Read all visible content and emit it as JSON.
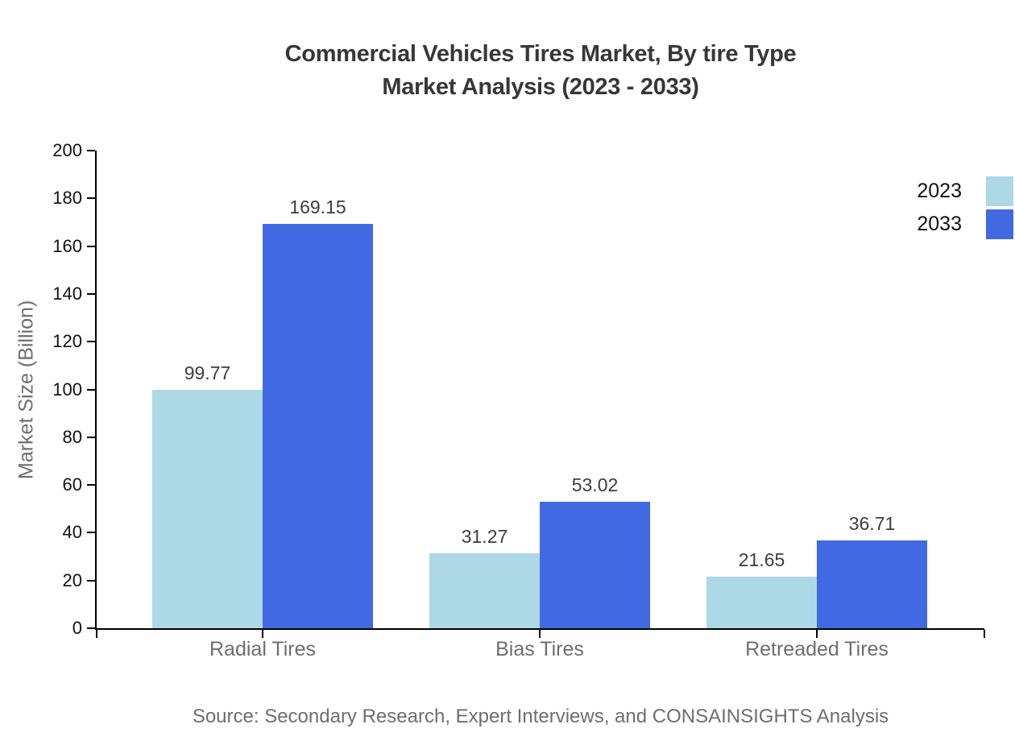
{
  "title": {
    "line1": "Commercial Vehicles Tires Market, By tire Type",
    "line2": "Market Analysis (2023 - 2033)"
  },
  "source_note": "Source: Secondary Research, Expert Interviews, and CONSAINSIGHTS Analysis",
  "chart_data": {
    "type": "bar",
    "title": "Commercial Vehicles Tires Market, By tire Type Market Analysis (2023 - 2033)",
    "categories": [
      "Radial Tires",
      "Bias Tires",
      "Retreaded Tires"
    ],
    "series": [
      {
        "name": "2023",
        "color": "#add8e6",
        "values": [
          99.77,
          31.27,
          21.65
        ]
      },
      {
        "name": "2033",
        "color": "#4169e1",
        "values": [
          169.15,
          53.02,
          36.71
        ]
      }
    ],
    "xlabel": "",
    "ylabel": "Market Size (Billion)",
    "ylim": [
      0,
      200
    ],
    "ytick_step": 20,
    "grid": false,
    "legend_position": "top-right",
    "bar_value_labels": true
  },
  "colors": {
    "background": "#ffffff",
    "axis": "#000000",
    "title_text": "#373737",
    "tick_text": "#111111",
    "gray_label_text": "#6e6e6e",
    "value_label_text": "#3d3d3d"
  }
}
